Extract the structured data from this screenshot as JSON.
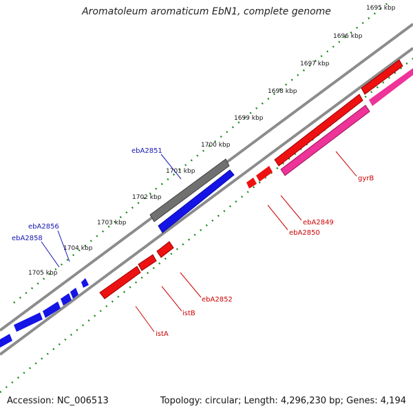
{
  "title": "Aromatoleum aromaticum EbN1, complete genome",
  "footer": {
    "accession": "Accession: NC_006513",
    "summary": "Topology: circular; Length: 4,296,230 bp; Genes: 4,194"
  },
  "colors": {
    "background": "#ffffff",
    "ruler_ticks": "#1a8a1a",
    "backbone": "#8c8c8c",
    "forward_genes": "#1414e6",
    "reverse_genes": "#ee1111",
    "gyrB": "#ee3399",
    "gray_feature": "#707070",
    "forward_labels": "#1414b4",
    "reverse_labels": "#cc0000"
  },
  "kbp_ticks": [
    "1695 kbp",
    "1696 kbp",
    "1697 kbp",
    "1698 kbp",
    "1699 kbp",
    "1700 kbp",
    "1701 kbp",
    "1702 kbp",
    "1703 kbp",
    "1704 kbp",
    "1705 kbp"
  ],
  "forward_gene_labels": [
    "ebA2851",
    "ebA2856",
    "ebA2858"
  ],
  "reverse_gene_labels": [
    "gyrB",
    "ebA2849",
    "ebA2850",
    "ebA2852",
    "istB",
    "istA"
  ]
}
